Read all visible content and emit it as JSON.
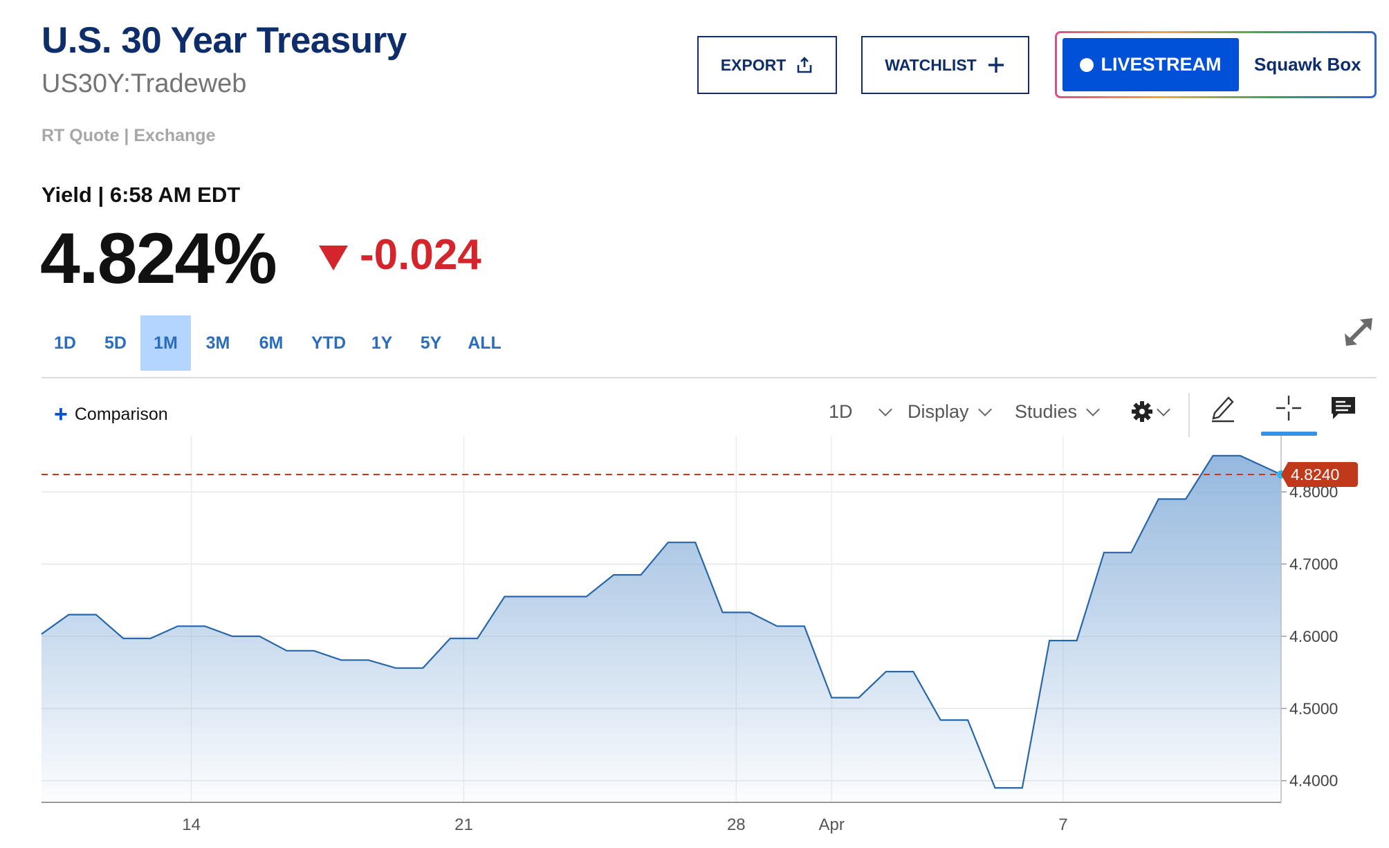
{
  "header": {
    "title": "U.S. 30 Year Treasury",
    "symbol": "US30Y:Tradeweb",
    "rt_quote": "RT Quote | Exchange",
    "export_label": "EXPORT",
    "watchlist_label": "WATCHLIST",
    "livestream_label": "LIVESTREAM",
    "squawk_label": "Squawk Box"
  },
  "quote": {
    "yield_label": "Yield | 6:58 AM EDT",
    "price": "4.824%",
    "change": "-0.024",
    "change_color": "#d3252b"
  },
  "range_tabs": {
    "items": [
      "1D",
      "5D",
      "1M",
      "3M",
      "6M",
      "YTD",
      "1Y",
      "5Y",
      "ALL"
    ],
    "selected": "1M"
  },
  "toolbar": {
    "comparison_label": "Comparison",
    "interval_label": "1D",
    "display_label": "Display",
    "studies_label": "Studies",
    "icons": [
      "settings-gear-icon",
      "pencil-draw-icon",
      "crosshair-icon",
      "comment-icon",
      "expand-icon"
    ]
  },
  "chart_data": {
    "type": "area",
    "current_value": 4.824,
    "current_label": "4.8240",
    "ylim": [
      4.37,
      4.87
    ],
    "yticks": [
      4.4,
      4.5,
      4.6,
      4.7,
      4.8
    ],
    "ytick_labels": [
      "4.4000",
      "4.5000",
      "4.6000",
      "4.7000",
      "4.8000"
    ],
    "xtick_labels": [
      "14",
      "21",
      "28",
      "Apr",
      "7"
    ],
    "x_label_index": [
      5.5,
      15.5,
      25.5,
      29,
      37.5
    ],
    "values": [
      4.603,
      4.63,
      4.597,
      4.614,
      4.6,
      4.58,
      4.567,
      4.556,
      4.597,
      4.655,
      4.655,
      4.685,
      4.73,
      4.633,
      4.614,
      4.515,
      4.551,
      4.484,
      4.39,
      4.594,
      4.716,
      4.79,
      4.85,
      4.824
    ],
    "x_index": [
      0,
      1.5,
      3.5,
      5.5,
      7.5,
      9.5,
      11.5,
      13.5,
      15.5,
      17.5,
      19.5,
      21.5,
      23.5,
      25.5,
      27.5,
      29.5,
      31.5,
      33.5,
      35.5,
      37.5,
      39.5,
      41.5,
      43.5,
      45.5
    ],
    "line_color": "#2766a8",
    "fill_color": "#8fb4dc",
    "current_color": "#c0391b",
    "grid": true
  }
}
